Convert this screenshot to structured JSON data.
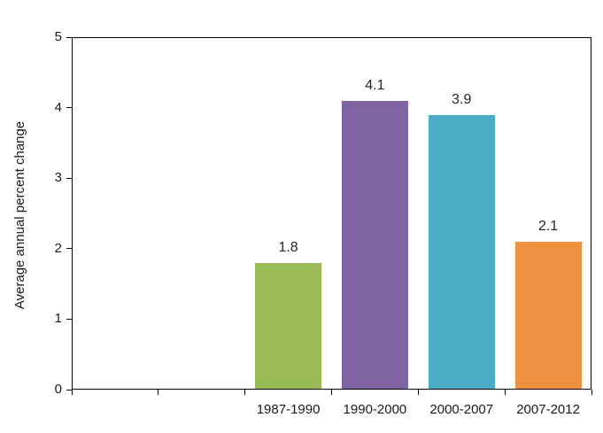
{
  "chart_data": {
    "type": "bar",
    "title": "",
    "xlabel": "",
    "ylabel": "Average annual percent change",
    "ylim": [
      0,
      5
    ],
    "yticks": [
      0,
      1,
      2,
      3,
      4,
      5
    ],
    "categories": [
      "1987-1990",
      "1990-2000",
      "2000-2007",
      "2007-2012"
    ],
    "values": [
      1.8,
      4.1,
      3.9,
      2.1
    ],
    "value_labels": [
      "1.8",
      "4.1",
      "3.9",
      "2.1"
    ],
    "bar_colors": [
      "#9bbb59",
      "#8064a2",
      "#4bacc6",
      "#ed9140"
    ],
    "leading_empty_slots": 2,
    "total_slots": 6,
    "grid": false,
    "legend": "none",
    "axis_color": "#000000",
    "label_color": "#262626",
    "background": "#ffffff"
  }
}
